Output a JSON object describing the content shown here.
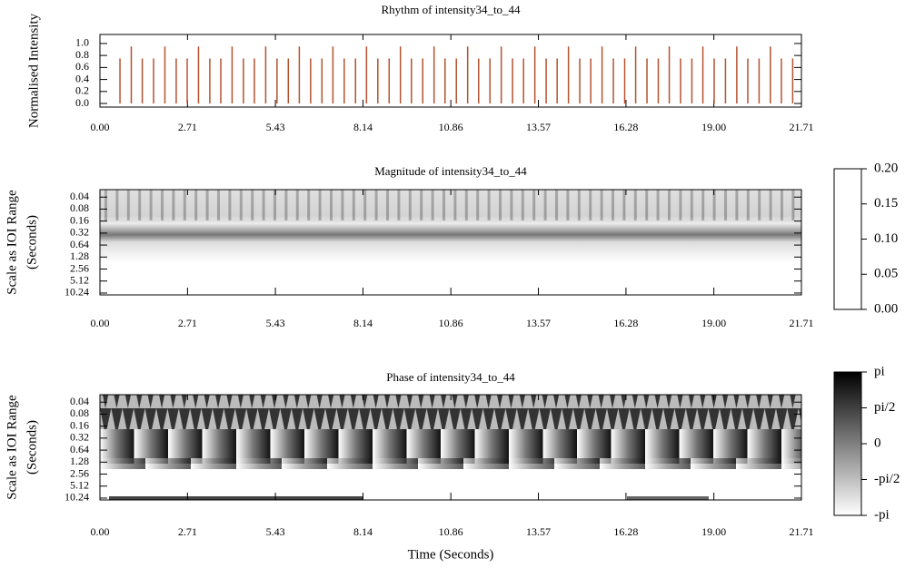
{
  "chart_data": [
    {
      "type": "stem",
      "title": "Rhythm of intensity34_to_44",
      "ylabel": [
        "Normalised Intensity"
      ],
      "color": "#b5522f",
      "x": [
        0.62,
        0.97,
        1.31,
        1.66,
        2.01,
        2.36,
        2.7,
        3.05,
        3.4,
        3.74,
        4.09,
        4.44,
        4.78,
        5.13,
        5.48,
        5.83,
        6.17,
        6.52,
        6.87,
        7.21,
        7.56,
        7.91,
        8.25,
        8.6,
        8.95,
        9.3,
        9.64,
        9.99,
        10.34,
        10.68,
        11.03,
        11.38,
        11.72,
        12.07,
        12.42,
        12.77,
        13.11,
        13.46,
        13.81,
        14.15,
        14.5,
        14.85,
        15.19,
        15.54,
        15.89,
        16.24,
        16.58,
        16.93,
        17.28,
        17.62,
        17.97,
        18.32,
        18.66,
        19.01,
        19.36,
        19.71,
        20.05,
        20.4,
        20.75,
        21.09,
        21.44
      ],
      "values": [
        0.75,
        0.95,
        0.75,
        0.75,
        0.95,
        0.75,
        0.75,
        0.95,
        0.75,
        0.75,
        0.95,
        0.75,
        0.75,
        0.95,
        0.75,
        0.75,
        0.95,
        0.75,
        0.75,
        0.95,
        0.75,
        0.75,
        0.95,
        0.75,
        0.75,
        0.95,
        0.75,
        0.75,
        0.95,
        0.75,
        0.75,
        0.95,
        0.75,
        0.75,
        0.95,
        0.75,
        0.75,
        0.95,
        0.75,
        0.75,
        0.95,
        0.75,
        0.75,
        0.95,
        0.75,
        0.75,
        0.95,
        0.75,
        0.75,
        0.95,
        0.75,
        0.75,
        0.95,
        0.75,
        0.75,
        0.95,
        0.75,
        0.75,
        0.95,
        0.75,
        0.75
      ],
      "xlim": [
        0,
        21.71
      ],
      "xticks": [
        {
          "value": 0,
          "label": "0.00"
        },
        2.71,
        5.43,
        8.14,
        10.86,
        13.57,
        16.28,
        {
          "value": 19,
          "label": "19.00"
        },
        21.71
      ],
      "ylim": [
        -0.06,
        1.15
      ],
      "yticks": [
        {
          "value": 0,
          "label": "0.0"
        },
        0.2,
        0.4,
        0.6,
        0.8,
        {
          "value": 1,
          "label": "1.0"
        }
      ]
    },
    {
      "type": "heatmap",
      "title": "Magnitude of intensity34_to_44",
      "ylabel": [
        "Scale as IOI Range",
        "(Seconds)"
      ],
      "log_scale": true,
      "xlim": [
        0,
        21.71
      ],
      "xticks": [
        {
          "value": 0,
          "label": "0.00"
        },
        2.71,
        5.43,
        8.14,
        10.86,
        13.57,
        16.28,
        {
          "value": 19,
          "label": "19.00"
        },
        21.71
      ],
      "ylim": [
        11.4,
        0.026
      ],
      "yticks": [
        0.04,
        0.08,
        0.16,
        0.32,
        0.64,
        1.28,
        2.56,
        5.12,
        10.24
      ],
      "colormap": [
        "#ffffff",
        "#000000"
      ],
      "clim": [
        0,
        0.2
      ],
      "colorbar_ticks": [
        {
          "value": 0,
          "label": "0.00"
        },
        0.05,
        {
          "value": 0.1,
          "label": "0.10"
        },
        0.15,
        {
          "value": 0.2,
          "label": "0.20"
        }
      ]
    },
    {
      "type": "heatmap",
      "title": "Phase of intensity34_to_44",
      "ylabel": [
        "Scale as IOI Range",
        "(Seconds)"
      ],
      "xlabel": "Time (Seconds)",
      "log_scale": true,
      "xlim": [
        0,
        21.71
      ],
      "xticks": [
        {
          "value": 0,
          "label": "0.00"
        },
        2.71,
        5.43,
        8.14,
        10.86,
        13.57,
        16.28,
        {
          "value": 19,
          "label": "19.00"
        },
        21.71
      ],
      "ylim": [
        11.4,
        0.026
      ],
      "yticks": [
        0.04,
        0.08,
        0.16,
        0.32,
        0.64,
        1.28,
        2.56,
        5.12,
        10.24
      ],
      "colormap": [
        "#ffffff",
        "#000000"
      ],
      "clim": [
        -3.1416,
        3.1416
      ],
      "colorbar_ticks": [
        {
          "value": -3.1416,
          "label": "-pi"
        },
        {
          "value": -1.5708,
          "label": "-pi/2"
        },
        0,
        {
          "value": 1.5708,
          "label": "pi/2"
        },
        {
          "value": 3.1416,
          "label": "pi"
        }
      ]
    }
  ]
}
